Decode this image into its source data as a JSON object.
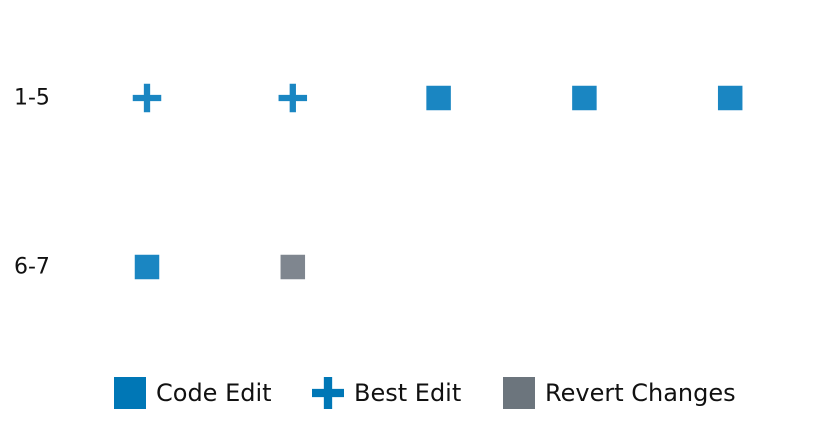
{
  "chart_data": {
    "type": "scatter",
    "rows": [
      "1-5",
      "6-7"
    ],
    "marker_colors": {
      "Code Edit": "#1a86c2",
      "Best Edit": "#1a86c2",
      "Revert Changes": "#7f868f"
    },
    "legend": {
      "placement": "bottom-center",
      "entries": [
        {
          "label": "Code Edit",
          "shape": "square",
          "color": "#0077b6"
        },
        {
          "label": "Best Edit",
          "shape": "plus",
          "color": "#0077b6"
        },
        {
          "label": "Revert Changes",
          "shape": "square",
          "color": "#6c757d"
        }
      ]
    },
    "series": [
      {
        "row": "1-5",
        "steps": [
          "Best Edit",
          "Best Edit",
          "Code Edit",
          "Code Edit",
          "Code Edit"
        ]
      },
      {
        "row": "6-7",
        "steps": [
          "Code Edit",
          "Revert Changes"
        ]
      }
    ]
  }
}
